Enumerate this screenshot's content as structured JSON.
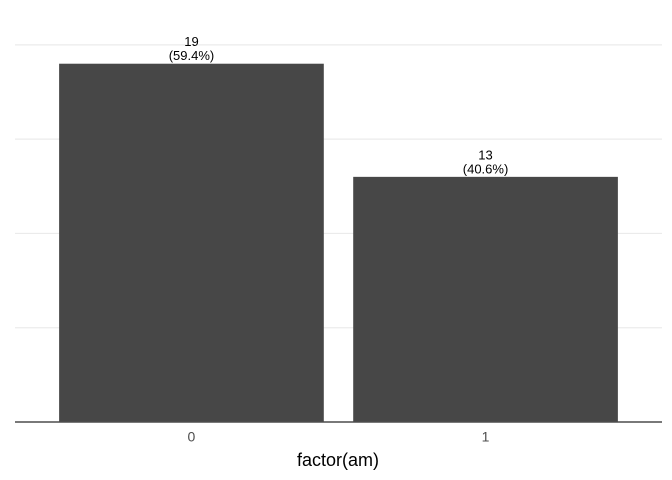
{
  "chart_data": {
    "type": "bar",
    "x_label": "factor(am)",
    "categories": [
      "0",
      "1"
    ],
    "values": [
      19,
      13
    ],
    "percent_labels": [
      "(59.4%)",
      "(40.6%)"
    ],
    "color": "#474747",
    "ylim": [
      0,
      21
    ],
    "yticks": [
      5,
      10,
      15,
      20
    ],
    "grid": true
  }
}
